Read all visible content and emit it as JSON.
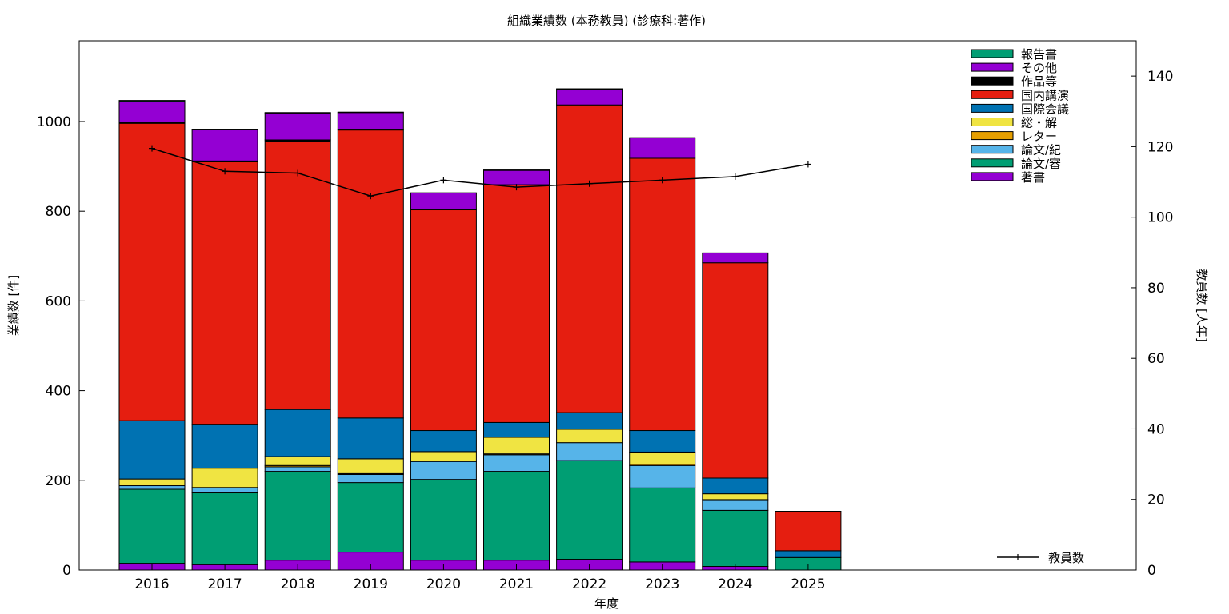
{
  "chart_data": {
    "type": "bar",
    "stacked": true,
    "title": "組織業績数 (本務教員) (診療科:著作)",
    "xlabel": "年度",
    "ylabel": "業績数 [件]",
    "y2label": "教員数 [人年]",
    "ylim": [
      0,
      1180
    ],
    "y2lim": [
      0,
      150
    ],
    "yticks": [
      0,
      200,
      400,
      600,
      800,
      1000
    ],
    "y2ticks": [
      0,
      20,
      40,
      60,
      80,
      100,
      120,
      140
    ],
    "categories": [
      "2016",
      "2017",
      "2018",
      "2019",
      "2020",
      "2021",
      "2022",
      "2023",
      "2024",
      "2025"
    ],
    "legend_position": "top-right",
    "series": [
      {
        "name": "著書",
        "color": "#9400d3",
        "values": [
          15,
          12,
          22,
          40,
          22,
          22,
          24,
          18,
          8,
          0
        ]
      },
      {
        "name": "論文/審",
        "color": "#009e73",
        "values": [
          165,
          160,
          198,
          155,
          180,
          198,
          220,
          165,
          125,
          28
        ]
      },
      {
        "name": "論文/紀",
        "color": "#56b4e9",
        "values": [
          8,
          12,
          10,
          18,
          40,
          37,
          40,
          50,
          22,
          0
        ]
      },
      {
        "name": "レター",
        "color": "#e69f00",
        "values": [
          0,
          0,
          3,
          2,
          0,
          2,
          0,
          3,
          2,
          0
        ]
      },
      {
        "name": "総・解",
        "color": "#f0e442",
        "values": [
          15,
          43,
          20,
          33,
          22,
          37,
          30,
          27,
          13,
          0
        ]
      },
      {
        "name": "国際会議",
        "color": "#0072b2",
        "values": [
          130,
          98,
          105,
          91,
          47,
          33,
          37,
          48,
          35,
          15
        ]
      },
      {
        "name": "国内講演",
        "color": "#e51e10",
        "values": [
          663,
          585,
          597,
          642,
          492,
          530,
          686,
          607,
          480,
          87
        ]
      },
      {
        "name": "作品等",
        "color": "#000000",
        "values": [
          2,
          2,
          4,
          2,
          0,
          0,
          0,
          0,
          0,
          0
        ]
      },
      {
        "name": "その他",
        "color": "#9400d3",
        "values": [
          47,
          70,
          60,
          37,
          38,
          32,
          35,
          46,
          22,
          0
        ]
      },
      {
        "name": "報告書",
        "color": "#009e73",
        "values": [
          2,
          1,
          1,
          1,
          0,
          1,
          1,
          0,
          0,
          1
        ]
      }
    ],
    "line_series": {
      "name": "教員数",
      "color": "#000000",
      "values": [
        119.5,
        113,
        112.5,
        106,
        110.5,
        108.5,
        109.5,
        110.5,
        111.5,
        115
      ]
    }
  }
}
